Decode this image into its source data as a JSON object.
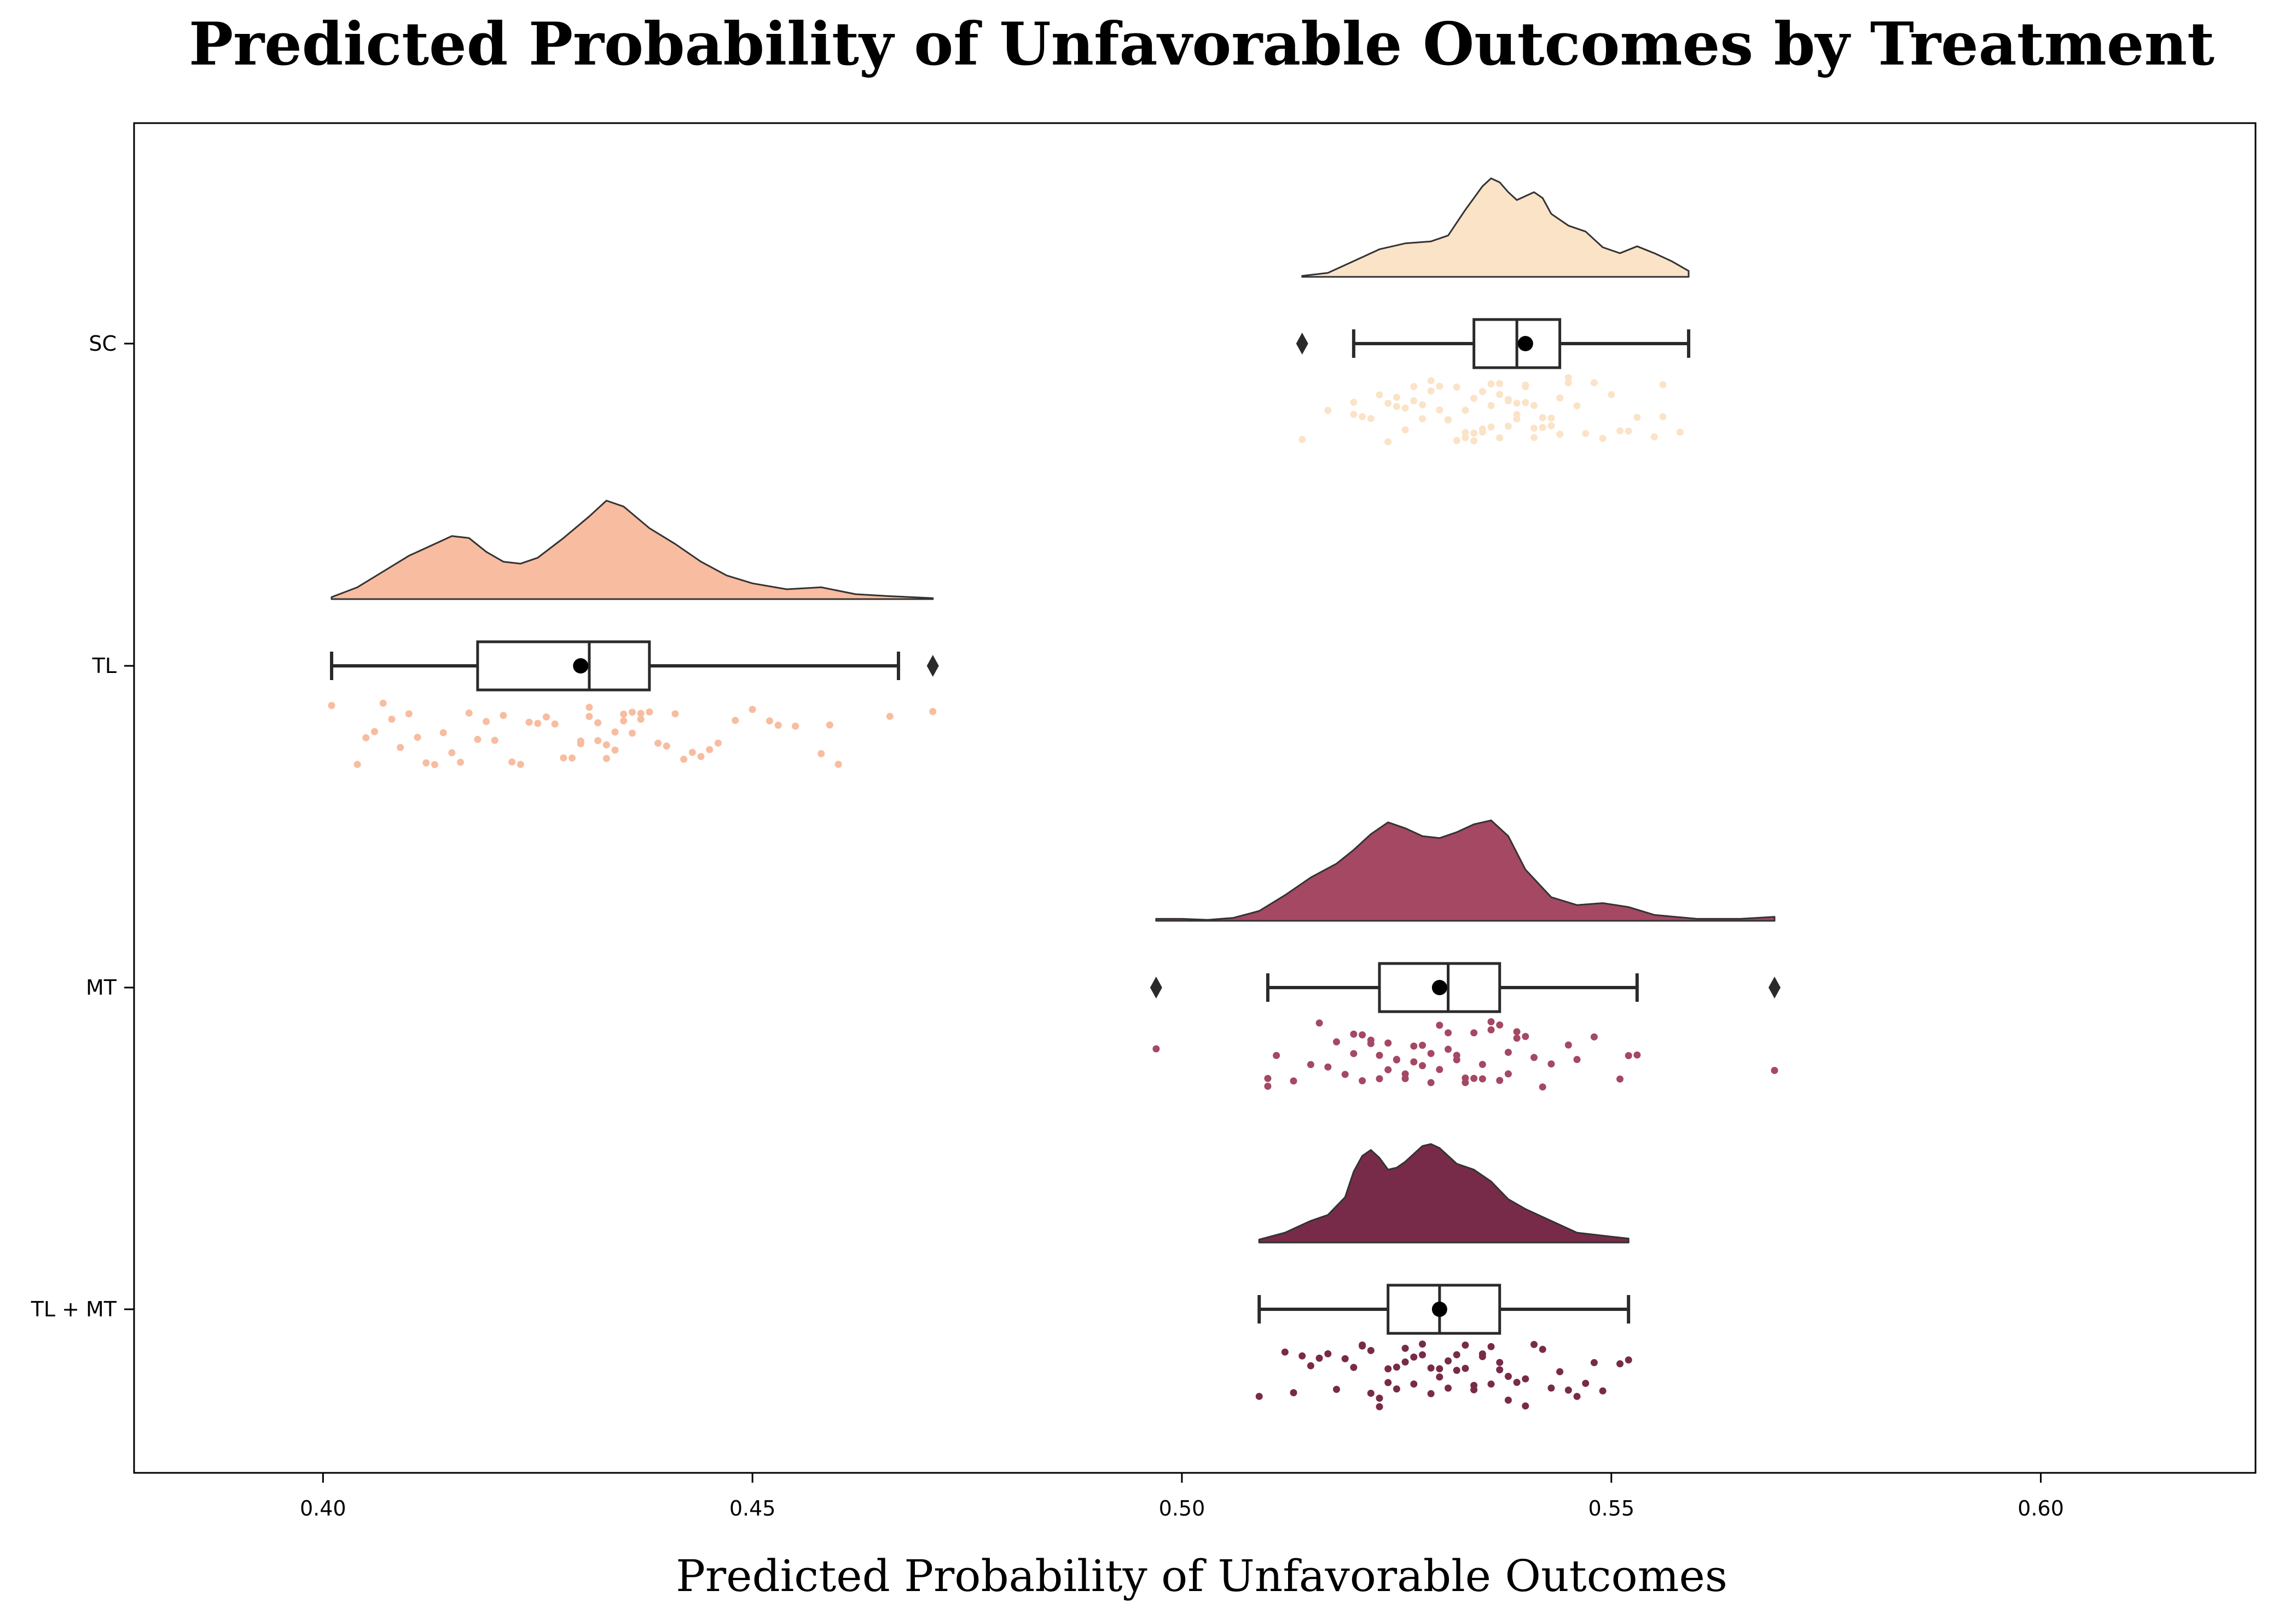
{
  "chart_data": {
    "type": "raincloud",
    "title": "Predicted Probability of Unfavorable Outcomes by Treatment",
    "xlabel": "Predicted Probability of Unfavorable Outcomes",
    "ylabel": "",
    "xlim": [
      0.378,
      0.625
    ],
    "xticks": [
      0.4,
      0.45,
      0.5,
      0.55,
      0.6
    ],
    "xtick_labels": [
      "0.40",
      "0.45",
      "0.50",
      "0.55",
      "0.60"
    ],
    "categories": [
      "SC",
      "TL",
      "MT",
      "TL + MT"
    ],
    "grid": false,
    "legend": "none",
    "series": [
      {
        "name": "SC",
        "color": "#fbe3c8",
        "box": {
          "whisker_low": 0.52,
          "q1": 0.534,
          "median": 0.539,
          "q3": 0.544,
          "whisker_high": 0.559,
          "mean": 0.54
        },
        "outliers": [
          0.514
        ],
        "density_x": [
          0.514,
          0.517,
          0.52,
          0.523,
          0.526,
          0.529,
          0.531,
          0.533,
          0.535,
          0.536,
          0.537,
          0.538,
          0.539,
          0.54,
          0.541,
          0.542,
          0.543,
          0.545,
          0.547,
          0.549,
          0.551,
          0.553,
          0.555,
          0.557,
          0.559
        ],
        "density_y": [
          0.01,
          0.04,
          0.16,
          0.28,
          0.34,
          0.36,
          0.42,
          0.68,
          0.92,
          1.0,
          0.96,
          0.86,
          0.78,
          0.82,
          0.86,
          0.8,
          0.64,
          0.52,
          0.46,
          0.3,
          0.24,
          0.31,
          0.24,
          0.16,
          0.06
        ],
        "points": [
          0.514,
          0.517,
          0.52,
          0.52,
          0.521,
          0.522,
          0.523,
          0.524,
          0.524,
          0.525,
          0.525,
          0.526,
          0.526,
          0.527,
          0.527,
          0.528,
          0.528,
          0.529,
          0.529,
          0.53,
          0.53,
          0.531,
          0.531,
          0.532,
          0.532,
          0.533,
          0.533,
          0.533,
          0.534,
          0.534,
          0.534,
          0.535,
          0.535,
          0.535,
          0.536,
          0.536,
          0.536,
          0.537,
          0.537,
          0.537,
          0.538,
          0.538,
          0.538,
          0.539,
          0.539,
          0.539,
          0.54,
          0.54,
          0.54,
          0.541,
          0.541,
          0.541,
          0.542,
          0.542,
          0.543,
          0.543,
          0.544,
          0.544,
          0.545,
          0.545,
          0.546,
          0.547,
          0.548,
          0.549,
          0.55,
          0.551,
          0.552,
          0.553,
          0.555,
          0.556,
          0.556,
          0.558
        ]
      },
      {
        "name": "TL",
        "color": "#f8bca0",
        "box": {
          "whisker_low": 0.401,
          "q1": 0.418,
          "median": 0.431,
          "q3": 0.438,
          "whisker_high": 0.467,
          "mean": 0.43
        },
        "outliers": [
          0.471
        ],
        "density_x": [
          0.401,
          0.404,
          0.407,
          0.41,
          0.413,
          0.415,
          0.417,
          0.419,
          0.421,
          0.423,
          0.425,
          0.428,
          0.431,
          0.433,
          0.435,
          0.438,
          0.441,
          0.444,
          0.447,
          0.45,
          0.454,
          0.458,
          0.462,
          0.466,
          0.471
        ],
        "density_y": [
          0.02,
          0.12,
          0.28,
          0.44,
          0.56,
          0.64,
          0.62,
          0.48,
          0.38,
          0.36,
          0.42,
          0.62,
          0.84,
          1.0,
          0.94,
          0.72,
          0.56,
          0.38,
          0.24,
          0.16,
          0.1,
          0.12,
          0.05,
          0.03,
          0.01
        ],
        "points": [
          0.401,
          0.404,
          0.405,
          0.406,
          0.407,
          0.408,
          0.409,
          0.41,
          0.411,
          0.412,
          0.413,
          0.414,
          0.415,
          0.416,
          0.417,
          0.418,
          0.419,
          0.42,
          0.421,
          0.422,
          0.423,
          0.424,
          0.425,
          0.426,
          0.427,
          0.428,
          0.429,
          0.43,
          0.43,
          0.431,
          0.431,
          0.432,
          0.432,
          0.433,
          0.433,
          0.434,
          0.434,
          0.435,
          0.435,
          0.436,
          0.436,
          0.437,
          0.437,
          0.438,
          0.439,
          0.44,
          0.441,
          0.442,
          0.443,
          0.444,
          0.445,
          0.446,
          0.448,
          0.45,
          0.452,
          0.453,
          0.455,
          0.458,
          0.459,
          0.46,
          0.466,
          0.471
        ]
      },
      {
        "name": "MT",
        "color": "#a44863",
        "box": {
          "whisker_low": 0.51,
          "q1": 0.523,
          "median": 0.531,
          "q3": 0.537,
          "whisker_high": 0.553,
          "mean": 0.53
        },
        "outliers": [
          0.497,
          0.569
        ],
        "density_x": [
          0.497,
          0.5,
          0.503,
          0.506,
          0.509,
          0.512,
          0.515,
          0.518,
          0.52,
          0.522,
          0.524,
          0.526,
          0.528,
          0.53,
          0.532,
          0.534,
          0.536,
          0.538,
          0.54,
          0.543,
          0.546,
          0.549,
          0.552,
          0.555,
          0.56,
          0.565,
          0.569
        ],
        "density_y": [
          0.02,
          0.02,
          0.01,
          0.03,
          0.1,
          0.26,
          0.44,
          0.58,
          0.72,
          0.88,
          1.0,
          0.94,
          0.86,
          0.84,
          0.9,
          0.98,
          1.02,
          0.86,
          0.52,
          0.24,
          0.16,
          0.18,
          0.14,
          0.06,
          0.02,
          0.02,
          0.04
        ],
        "points": [
          0.497,
          0.51,
          0.51,
          0.511,
          0.513,
          0.515,
          0.516,
          0.517,
          0.518,
          0.519,
          0.52,
          0.52,
          0.521,
          0.521,
          0.522,
          0.522,
          0.523,
          0.523,
          0.524,
          0.524,
          0.525,
          0.525,
          0.526,
          0.526,
          0.527,
          0.527,
          0.528,
          0.528,
          0.529,
          0.529,
          0.53,
          0.53,
          0.531,
          0.531,
          0.532,
          0.532,
          0.533,
          0.533,
          0.534,
          0.534,
          0.535,
          0.535,
          0.536,
          0.536,
          0.537,
          0.537,
          0.538,
          0.538,
          0.539,
          0.539,
          0.54,
          0.541,
          0.542,
          0.543,
          0.545,
          0.546,
          0.548,
          0.551,
          0.552,
          0.553,
          0.569
        ]
      },
      {
        "name": "TL + MT",
        "color": "#782b48",
        "box": {
          "whisker_low": 0.509,
          "q1": 0.524,
          "median": 0.53,
          "q3": 0.537,
          "whisker_high": 0.552,
          "mean": 0.53
        },
        "outliers": [],
        "density_x": [
          0.509,
          0.512,
          0.515,
          0.517,
          0.519,
          0.52,
          0.521,
          0.522,
          0.523,
          0.524,
          0.525,
          0.526,
          0.527,
          0.528,
          0.529,
          0.53,
          0.531,
          0.532,
          0.534,
          0.536,
          0.538,
          0.54,
          0.542,
          0.544,
          0.546,
          0.548,
          0.55,
          0.552
        ],
        "density_y": [
          0.03,
          0.1,
          0.22,
          0.28,
          0.46,
          0.72,
          0.88,
          0.94,
          0.86,
          0.74,
          0.76,
          0.82,
          0.9,
          0.98,
          1.0,
          0.96,
          0.88,
          0.8,
          0.74,
          0.62,
          0.44,
          0.34,
          0.26,
          0.18,
          0.1,
          0.08,
          0.06,
          0.04
        ],
        "points": [
          0.509,
          0.512,
          0.513,
          0.514,
          0.515,
          0.516,
          0.517,
          0.518,
          0.519,
          0.52,
          0.521,
          0.521,
          0.522,
          0.522,
          0.523,
          0.523,
          0.524,
          0.524,
          0.525,
          0.525,
          0.526,
          0.526,
          0.527,
          0.527,
          0.528,
          0.528,
          0.529,
          0.529,
          0.53,
          0.53,
          0.531,
          0.531,
          0.532,
          0.532,
          0.533,
          0.533,
          0.534,
          0.534,
          0.535,
          0.535,
          0.536,
          0.536,
          0.537,
          0.537,
          0.538,
          0.538,
          0.539,
          0.54,
          0.54,
          0.541,
          0.542,
          0.543,
          0.544,
          0.545,
          0.546,
          0.547,
          0.548,
          0.549,
          0.551,
          0.552
        ]
      }
    ]
  }
}
